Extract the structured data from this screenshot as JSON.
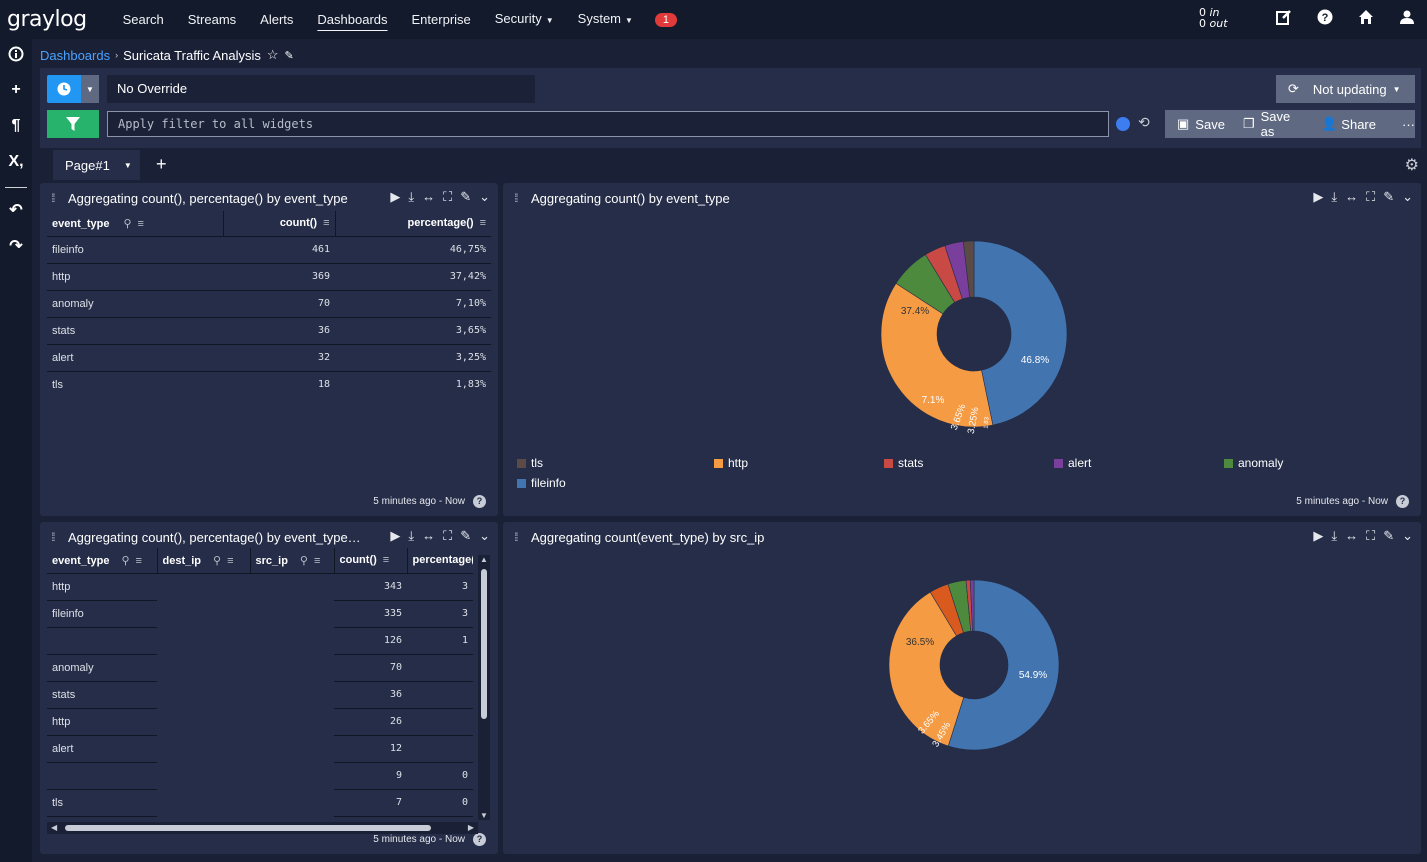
{
  "nav": {
    "logo": "graylog",
    "items": [
      "Search",
      "Streams",
      "Alerts",
      "Dashboards",
      "Enterprise"
    ],
    "security": "Security",
    "system": "System",
    "notifications": "1",
    "throughput_in_count": "0",
    "throughput_in_label": "in",
    "throughput_out_count": "0",
    "throughput_out_label": "out"
  },
  "breadcrumb": {
    "root": "Dashboards",
    "title": "Suricata Traffic Analysis"
  },
  "search": {
    "time_override": "No Override",
    "refresh": "Not updating",
    "filter_placeholder": "Apply filter to all widgets",
    "save": "Save",
    "save_as": "Save as",
    "share": "Share"
  },
  "tabs": {
    "page": "Page#1"
  },
  "widget1": {
    "title": "Aggregating count(), percentage() by event_type",
    "columns": [
      "event_type",
      "count()",
      "percentage()"
    ],
    "rows": [
      [
        "fileinfo",
        "461",
        "46,75%"
      ],
      [
        "http",
        "369",
        "37,42%"
      ],
      [
        "anomaly",
        "70",
        "7,10%"
      ],
      [
        "stats",
        "36",
        "3,65%"
      ],
      [
        "alert",
        "32",
        "3,25%"
      ],
      [
        "tls",
        "18",
        "1,83%"
      ]
    ],
    "footer": "5 minutes ago - Now"
  },
  "widget2": {
    "title": "Aggregating count() by event_type",
    "labels": [
      "46.8%",
      "37.4%",
      "7.1%",
      "3.65%",
      "3.25%",
      "1.83"
    ],
    "legend": [
      "tls",
      "http",
      "stats",
      "alert",
      "anomaly",
      "fileinfo"
    ],
    "footer": "5 minutes ago - Now"
  },
  "widget3": {
    "title": "Aggregating count(), percentage() by event_type, dest_ip, src_ip",
    "columns": [
      "event_type",
      "dest_ip",
      "src_ip",
      "count()",
      "percentage()"
    ],
    "rows": [
      [
        "http",
        "",
        "",
        "343",
        "3"
      ],
      [
        "fileinfo",
        "",
        "",
        "335",
        "3"
      ],
      [
        "",
        "",
        "",
        "126",
        "1"
      ],
      [
        "anomaly",
        "",
        "",
        "70",
        ""
      ],
      [
        "stats",
        "",
        "",
        "36",
        ""
      ],
      [
        "http",
        "",
        "",
        "26",
        ""
      ],
      [
        "alert",
        "",
        "",
        "12",
        ""
      ],
      [
        "",
        "",
        "",
        "9",
        "0"
      ],
      [
        "tls",
        "",
        "",
        "7",
        "0"
      ]
    ],
    "footer": "5 minutes ago - Now"
  },
  "widget4": {
    "title": "Aggregating count(event_type) by src_ip",
    "labels": [
      "54.9%",
      "36.5%",
      "3.65%",
      "3.45%"
    ]
  },
  "chart_data": [
    {
      "type": "pie",
      "title": "Aggregating count() by event_type",
      "categories": [
        "fileinfo",
        "http",
        "anomaly",
        "stats",
        "alert",
        "tls"
      ],
      "values": [
        46.75,
        37.42,
        7.1,
        3.65,
        3.25,
        1.83
      ],
      "colors": [
        "#4274b0",
        "#f59b43",
        "#4e8a3e",
        "#c94a44",
        "#7a3f9c",
        "#5b4a45"
      ],
      "legend": "bottom"
    },
    {
      "type": "pie",
      "title": "Aggregating count(event_type) by src_ip",
      "values": [
        54.9,
        36.5,
        3.65,
        3.45,
        0.8,
        0.7
      ],
      "colors": [
        "#4274b0",
        "#f59b43",
        "#d85a1e",
        "#4e8a3e",
        "#c94a44",
        "#7a3f9c"
      ]
    }
  ]
}
